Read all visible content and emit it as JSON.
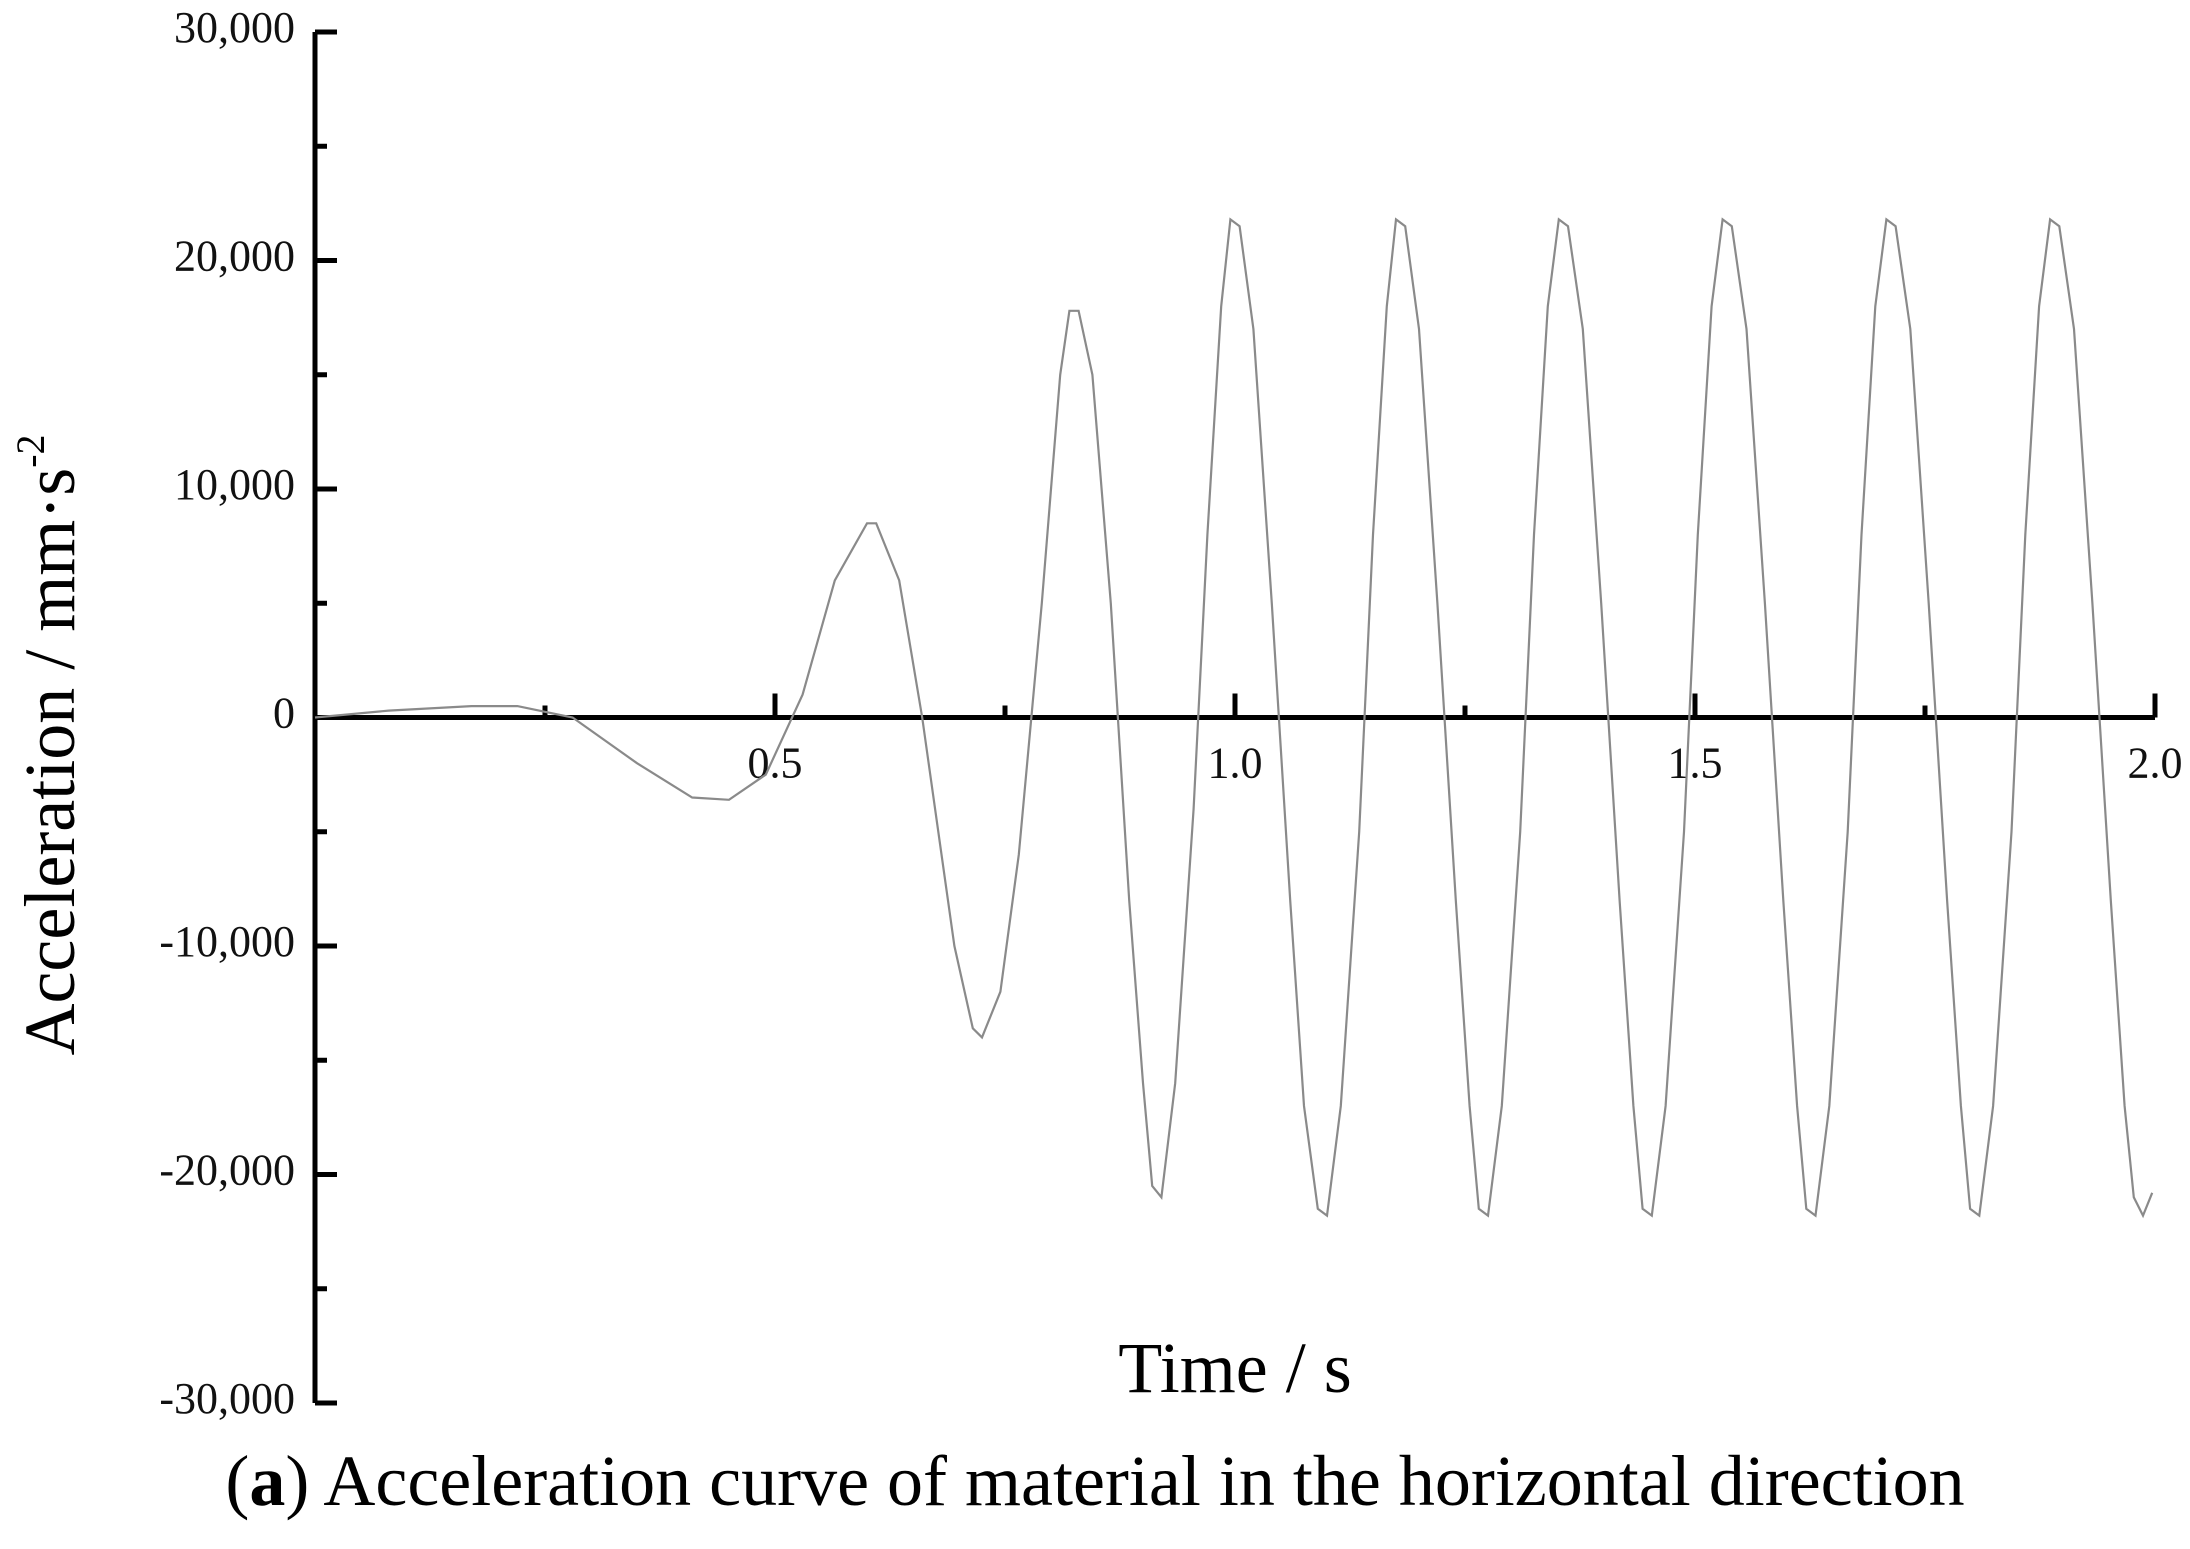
{
  "caption": {
    "label": "a",
    "text": "Acceleration curve of material in the horizontal direction"
  },
  "chart_data": {
    "type": "line",
    "title": "",
    "xlabel": "Time / s",
    "ylabel_main": "Acceleration / mm·s",
    "ylabel_exponent": "-2",
    "xlim": [
      0,
      2.0
    ],
    "ylim": [
      -30000,
      30000
    ],
    "x_ticks": [
      0.25,
      0.5,
      0.75,
      1.0,
      1.25,
      1.5,
      1.75,
      2.0
    ],
    "x_tick_labels": [
      {
        "value": 0.5,
        "label": "0.5"
      },
      {
        "value": 1.0,
        "label": "1.0"
      },
      {
        "value": 1.5,
        "label": "1.5"
      },
      {
        "value": 2.0,
        "label": "2.0"
      }
    ],
    "y_ticks": [
      -30000,
      -25000,
      -20000,
      -15000,
      -10000,
      -5000,
      0,
      5000,
      10000,
      15000,
      20000,
      25000,
      30000
    ],
    "y_tick_labels": [
      {
        "value": 30000,
        "label": "30,000"
      },
      {
        "value": 20000,
        "label": "20,000"
      },
      {
        "value": 10000,
        "label": "10,000"
      },
      {
        "value": 0,
        "label": "0"
      },
      {
        "value": -10000,
        "label": "-10,000"
      },
      {
        "value": -20000,
        "label": "-20,000"
      },
      {
        "value": -30000,
        "label": "-30,000"
      }
    ],
    "grid": false,
    "line_color": "#8a8a8a",
    "series": [
      {
        "points": [
          [
            0.0,
            0
          ],
          [
            0.08,
            300
          ],
          [
            0.17,
            500
          ],
          [
            0.22,
            500
          ],
          [
            0.28,
            0
          ],
          [
            0.35,
            -2000
          ],
          [
            0.41,
            -3500
          ],
          [
            0.45,
            -3600
          ],
          [
            0.49,
            -2500
          ],
          [
            0.53,
            1000
          ],
          [
            0.565,
            6000
          ],
          [
            0.6,
            8500
          ],
          [
            0.61,
            8500
          ],
          [
            0.635,
            6000
          ],
          [
            0.66,
            0
          ],
          [
            0.695,
            -10000
          ],
          [
            0.715,
            -13600
          ],
          [
            0.725,
            -14000
          ],
          [
            0.745,
            -12000
          ],
          [
            0.765,
            -6000
          ],
          [
            0.79,
            5000
          ],
          [
            0.81,
            15000
          ],
          [
            0.82,
            17800
          ],
          [
            0.83,
            17800
          ],
          [
            0.845,
            15000
          ],
          [
            0.865,
            5000
          ],
          [
            0.885,
            -8000
          ],
          [
            0.9,
            -16000
          ],
          [
            0.91,
            -20500
          ],
          [
            0.92,
            -21000
          ],
          [
            0.935,
            -16000
          ],
          [
            0.955,
            -4000
          ],
          [
            0.97,
            8000
          ],
          [
            0.985,
            18000
          ],
          [
            0.995,
            21800
          ],
          [
            1.005,
            21500
          ],
          [
            1.02,
            17000
          ],
          [
            1.04,
            5000
          ],
          [
            1.06,
            -8000
          ],
          [
            1.075,
            -17000
          ],
          [
            1.09,
            -21500
          ],
          [
            1.1,
            -21800
          ],
          [
            1.115,
            -17000
          ],
          [
            1.135,
            -5000
          ],
          [
            1.15,
            8000
          ],
          [
            1.165,
            18000
          ],
          [
            1.175,
            21800
          ],
          [
            1.185,
            21500
          ],
          [
            1.2,
            17000
          ],
          [
            1.22,
            5000
          ],
          [
            1.24,
            -8000
          ],
          [
            1.255,
            -17000
          ],
          [
            1.265,
            -21500
          ],
          [
            1.275,
            -21800
          ],
          [
            1.29,
            -17000
          ],
          [
            1.31,
            -5000
          ],
          [
            1.325,
            8000
          ],
          [
            1.34,
            18000
          ],
          [
            1.352,
            21800
          ],
          [
            1.362,
            21500
          ],
          [
            1.378,
            17000
          ],
          [
            1.398,
            5000
          ],
          [
            1.418,
            -8000
          ],
          [
            1.433,
            -17000
          ],
          [
            1.443,
            -21500
          ],
          [
            1.453,
            -21800
          ],
          [
            1.468,
            -17000
          ],
          [
            1.488,
            -5000
          ],
          [
            1.503,
            8000
          ],
          [
            1.518,
            18000
          ],
          [
            1.53,
            21800
          ],
          [
            1.54,
            21500
          ],
          [
            1.556,
            17000
          ],
          [
            1.576,
            5000
          ],
          [
            1.596,
            -8000
          ],
          [
            1.611,
            -17000
          ],
          [
            1.621,
            -21500
          ],
          [
            1.631,
            -21800
          ],
          [
            1.646,
            -17000
          ],
          [
            1.666,
            -5000
          ],
          [
            1.681,
            8000
          ],
          [
            1.696,
            18000
          ],
          [
            1.708,
            21800
          ],
          [
            1.718,
            21500
          ],
          [
            1.734,
            17000
          ],
          [
            1.754,
            5000
          ],
          [
            1.774,
            -8000
          ],
          [
            1.789,
            -17000
          ],
          [
            1.799,
            -21500
          ],
          [
            1.809,
            -21800
          ],
          [
            1.824,
            -17000
          ],
          [
            1.844,
            -5000
          ],
          [
            1.859,
            8000
          ],
          [
            1.874,
            18000
          ],
          [
            1.886,
            21800
          ],
          [
            1.896,
            21500
          ],
          [
            1.912,
            17000
          ],
          [
            1.932,
            5000
          ],
          [
            1.952,
            -8000
          ],
          [
            1.967,
            -17000
          ],
          [
            1.977,
            -21000
          ],
          [
            1.987,
            -21800
          ],
          [
            1.997,
            -20800
          ]
        ]
      }
    ]
  }
}
